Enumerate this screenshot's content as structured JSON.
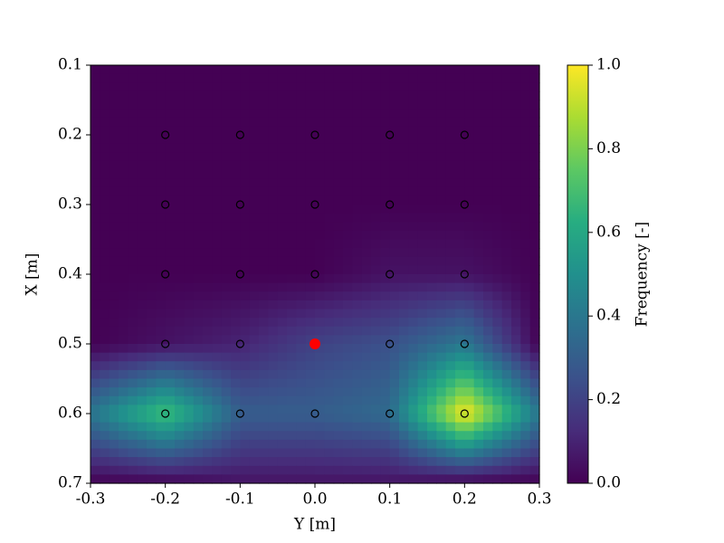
{
  "chart_data": {
    "type": "heatmap",
    "xlabel": "Y [m]",
    "ylabel": "X [m]",
    "colorbar_label": "Frequency [-]",
    "colormap": "viridis",
    "x": [
      -0.3,
      -0.2,
      -0.1,
      0,
      0.1,
      0.2,
      0.3
    ],
    "y": [
      0.1,
      0.2,
      0.3,
      0.4,
      0.5,
      0.6,
      0.7
    ],
    "z": [
      [
        0,
        0,
        0,
        0,
        0,
        0,
        0
      ],
      [
        0,
        0,
        0,
        0,
        0,
        0,
        0
      ],
      [
        0,
        0,
        0,
        0,
        0,
        0,
        0
      ],
      [
        0,
        0,
        0,
        0,
        0.05,
        0.05,
        0
      ],
      [
        0,
        0.05,
        0.1,
        0.2,
        0.25,
        0.4,
        0
      ],
      [
        0.4,
        0.7,
        0.3,
        0.3,
        0.35,
        1.0,
        0.4
      ],
      [
        0,
        0,
        0.05,
        0.05,
        0.05,
        0,
        0
      ]
    ],
    "sensor_x": [
      -0.2,
      -0.1,
      0,
      0.1,
      0.2
    ],
    "sensor_y": [
      0.2,
      0.3,
      0.4,
      0.5,
      0.6
    ],
    "sensor_color": "#000000",
    "highlight": {
      "x": 0,
      "y": 0.5,
      "color": "#ff0000"
    },
    "xlim": [
      -0.3,
      0.3
    ],
    "ylim": [
      0.1,
      0.7
    ],
    "y_inverted": true,
    "clim": [
      0,
      1
    ],
    "xticks": [
      -0.3,
      -0.2,
      -0.1,
      {
        "value": 0,
        "label": "0.0"
      },
      0.1,
      0.2,
      0.3
    ],
    "yticks": [
      0.1,
      0.2,
      0.3,
      0.4,
      0.5,
      0.6,
      0.7
    ],
    "cticks": [
      {
        "value": 0,
        "label": "0.0"
      },
      0.2,
      0.4,
      0.6,
      0.8,
      {
        "value": 1,
        "label": "1.0"
      }
    ]
  }
}
